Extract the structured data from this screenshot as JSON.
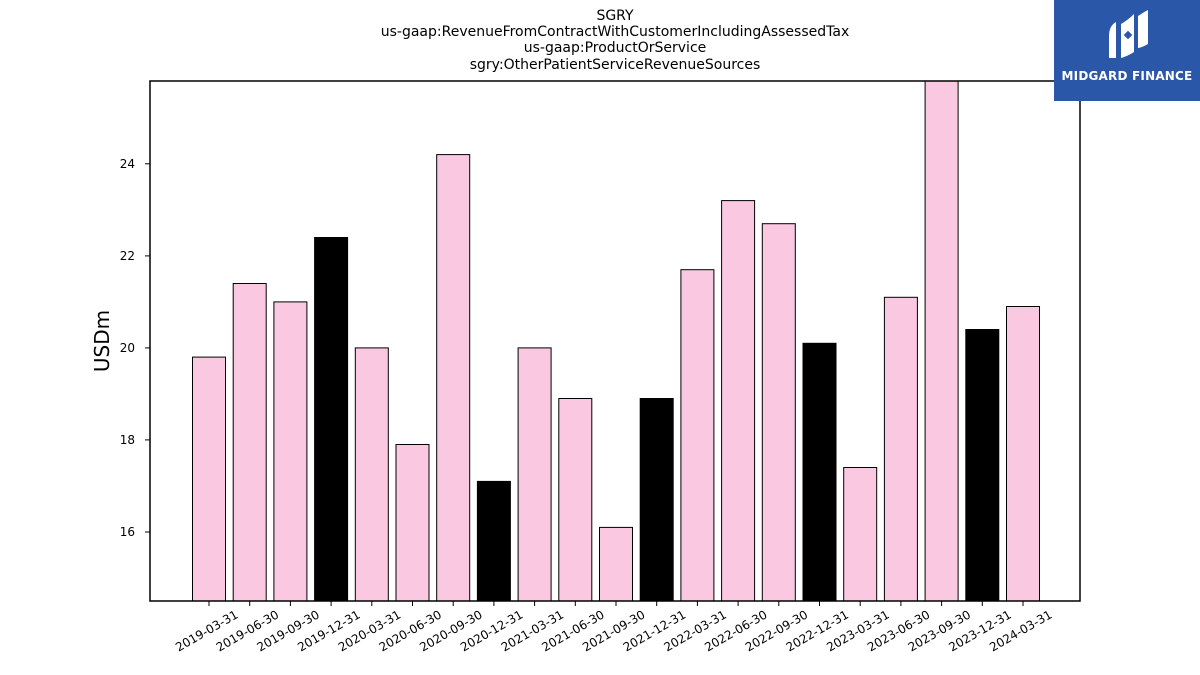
{
  "chart_data": {
    "type": "bar",
    "title_lines": [
      "SGRY",
      "us-gaap:RevenueFromContractWithCustomerIncludingAssessedTax",
      "us-gaap:ProductOrService",
      "sgry:OtherPatientServiceRevenueSources"
    ],
    "xlabel": "",
    "ylabel": "USDm",
    "ylim": [
      14.5,
      25.8
    ],
    "yticks": [
      16,
      18,
      20,
      22,
      24
    ],
    "grid": false,
    "categories": [
      "2019-03-31",
      "2019-06-30",
      "2019-09-30",
      "2019-12-31",
      "2020-03-31",
      "2020-06-30",
      "2020-09-30",
      "2020-12-31",
      "2021-03-31",
      "2021-06-30",
      "2021-09-30",
      "2021-12-31",
      "2022-03-31",
      "2022-06-30",
      "2022-09-30",
      "2022-12-31",
      "2023-03-31",
      "2023-06-30",
      "2023-09-30",
      "2023-12-31",
      "2024-03-31"
    ],
    "values": [
      19.8,
      21.4,
      21.0,
      22.4,
      20.0,
      17.9,
      24.2,
      17.1,
      20.0,
      18.9,
      16.1,
      18.9,
      21.7,
      23.2,
      22.7,
      20.1,
      17.4,
      21.1,
      25.9,
      20.4,
      20.9
    ],
    "highlight": [
      false,
      false,
      false,
      true,
      false,
      false,
      false,
      true,
      false,
      false,
      false,
      true,
      false,
      false,
      false,
      true,
      false,
      false,
      false,
      true,
      false
    ],
    "colors": {
      "bar": "#fbc8e2",
      "highlight": "#000000",
      "edge": "#000000"
    }
  },
  "logo": {
    "text": "MIDGARD FINANCE",
    "color": "#2a57a8"
  }
}
